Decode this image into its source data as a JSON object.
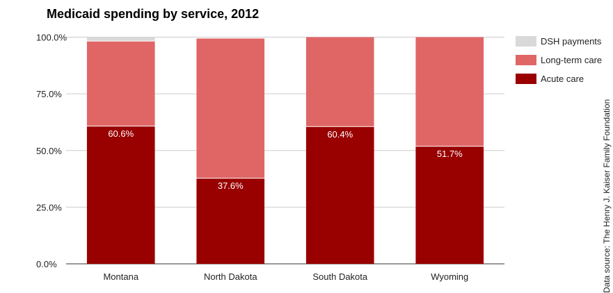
{
  "chart_data": {
    "type": "bar",
    "stacked": true,
    "title": "Medicaid spending by service, 2012",
    "xlabel": "",
    "ylabel": "",
    "ylim": [
      0,
      100
    ],
    "yticks": [
      "0.0%",
      "25.0%",
      "50.0%",
      "75.0%",
      "100.0%"
    ],
    "grid": true,
    "legend_position": "right",
    "categories": [
      "Montana",
      "North Dakota",
      "South Dakota",
      "Wyoming"
    ],
    "series": [
      {
        "name": "Acute care",
        "color": "#990000",
        "values": [
          60.6,
          37.6,
          60.4,
          51.7
        ],
        "labels": [
          "60.6%",
          "37.6%",
          "60.4%",
          "51.7%"
        ]
      },
      {
        "name": "Long-term care",
        "color": "#e06666",
        "values": [
          37.5,
          61.8,
          39.6,
          48.3
        ]
      },
      {
        "name": "DSH payments",
        "color": "#d9d9d9",
        "values": [
          1.9,
          0.0,
          0.0,
          0.0
        ]
      }
    ],
    "source": "Data source: The Henry J. Kaiser Family Foundation"
  }
}
